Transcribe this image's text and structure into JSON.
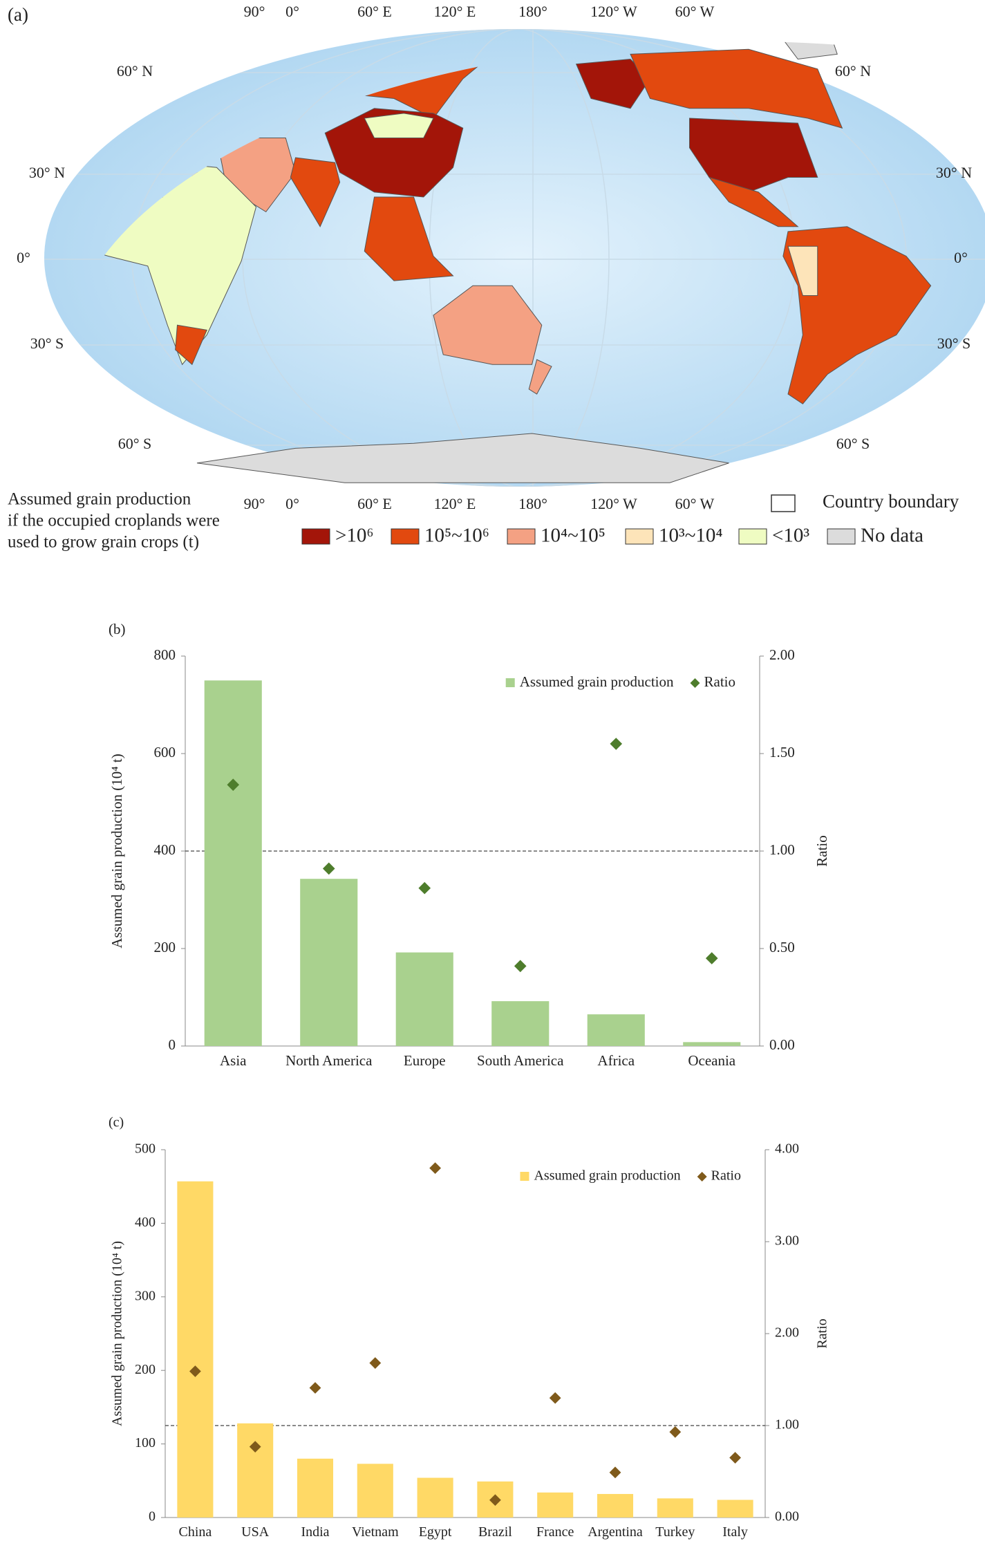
{
  "map": {
    "panel_label": "(a)",
    "lon_labels": [
      "90°",
      "0°",
      "60° E",
      "120° E",
      "180°",
      "120° W",
      "60° W"
    ],
    "lat_labels": [
      "60° N",
      "30° N",
      "0°",
      "30° S",
      "60° S"
    ],
    "title_lines": [
      "Assumed grain production",
      "if the occupied croplands were",
      "used to grow grain crops (t)"
    ],
    "boundary_label": "Country boundary",
    "legend": [
      {
        "label": ">10⁶",
        "color": "#a31509"
      },
      {
        "label": "10⁵~10⁶",
        "color": "#e2490f"
      },
      {
        "label": "10⁴~10⁵",
        "color": "#f4a183"
      },
      {
        "label": "10³~10⁴",
        "color": "#fde4b9"
      },
      {
        "label": "<10³",
        "color": "#effcc2"
      },
      {
        "label": "No data",
        "color": "#dcdcdc"
      }
    ]
  },
  "chart_data": [
    {
      "type": "bar",
      "panel_label": "(b)",
      "categories": [
        "Asia",
        "North America",
        "Europe",
        "South America",
        "Africa",
        "Oceania"
      ],
      "series": [
        {
          "name": "Assumed grain production",
          "color": "#a9d18e",
          "values": [
            750,
            343,
            192,
            92,
            65,
            8
          ]
        },
        {
          "name": "Ratio",
          "color": "#4e7d2c",
          "axis": "y2",
          "values": [
            1.34,
            0.91,
            0.81,
            0.41,
            1.55,
            0.45
          ]
        }
      ],
      "y_label": "Assumed grain production (10⁴ t)",
      "y2_label": "Ratio",
      "ylim": [
        0,
        800
      ],
      "yticks": [
        0,
        200,
        400,
        600,
        800
      ],
      "y2lim": [
        0,
        2
      ],
      "y2ticks": [
        {
          "value": 0,
          "label": "0.00"
        },
        {
          "value": 0.5,
          "label": "0.50"
        },
        {
          "value": 1,
          "label": "1.00"
        },
        {
          "value": 1.5,
          "label": "1.50"
        },
        {
          "value": 2,
          "label": "2.00"
        }
      ],
      "reference_line": {
        "value": 1,
        "axis": "y2"
      }
    },
    {
      "type": "bar",
      "panel_label": "(c)",
      "categories": [
        "China",
        "USA",
        "India",
        "Vietnam",
        "Egypt",
        "Brazil",
        "France",
        "Argentina",
        "Turkey",
        "Italy"
      ],
      "series": [
        {
          "name": "Assumed grain production",
          "color": "#ffd966",
          "values": [
            457,
            128,
            80,
            73,
            54,
            49,
            34,
            32,
            26,
            24
          ]
        },
        {
          "name": "Ratio",
          "color": "#7f5a1b",
          "axis": "y2",
          "values": [
            1.59,
            0.77,
            1.41,
            1.68,
            3.8,
            0.19,
            1.3,
            0.49,
            0.93,
            0.65
          ]
        }
      ],
      "y_label": "Assumed grain production (10⁴ t)",
      "y2_label": "Ratio",
      "ylim": [
        0,
        500
      ],
      "yticks": [
        0,
        100,
        200,
        300,
        400,
        500
      ],
      "y2lim": [
        0,
        4
      ],
      "y2ticks": [
        {
          "value": 0,
          "label": "0.00"
        },
        {
          "value": 1,
          "label": "1.00"
        },
        {
          "value": 2,
          "label": "2.00"
        },
        {
          "value": 3,
          "label": "3.00"
        },
        {
          "value": 4,
          "label": "4.00"
        }
      ],
      "reference_line": {
        "value": 1,
        "axis": "y2"
      }
    }
  ]
}
